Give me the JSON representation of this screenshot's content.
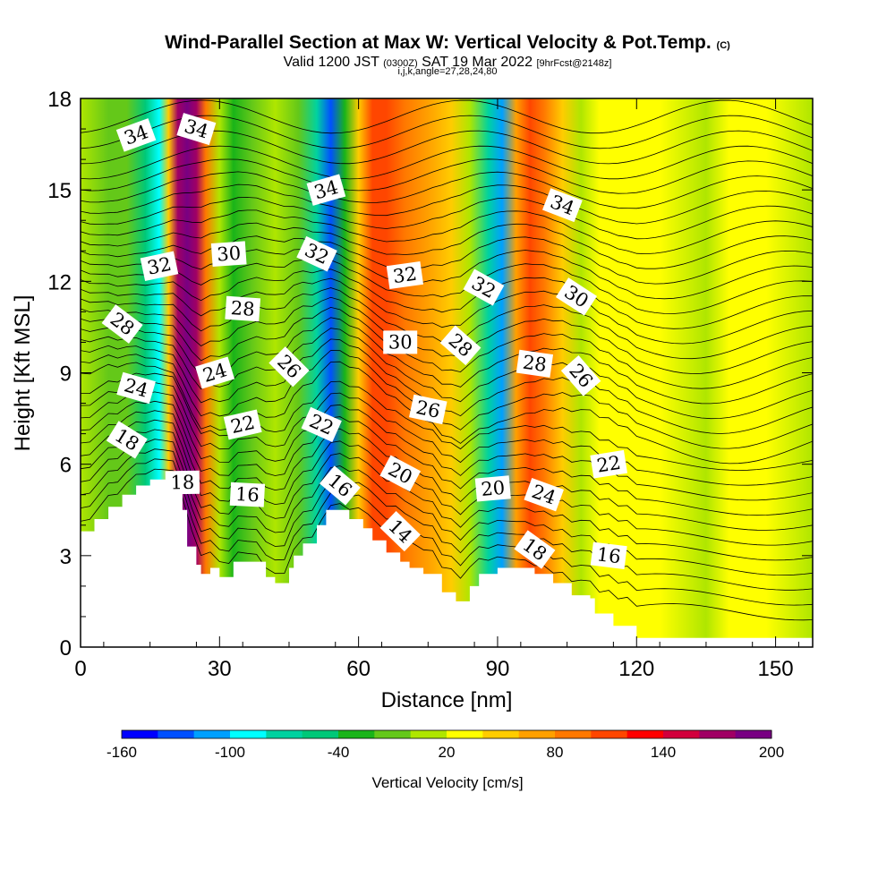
{
  "header": {
    "title_main": "Wind-Parallel Section at Max W: Vertical Velocity & Pot.Temp.",
    "title_mark": "(C)",
    "valid_prefix": "Valid 1200 JST",
    "valid_utc": "(0300Z)",
    "valid_date": "SAT 19 Mar 2022",
    "valid_fcst": "[9hrFcst@2148z]",
    "indices": "i,j,k,angle=27,28,24,80"
  },
  "chart_data": {
    "type": "heatmap",
    "xlabel": "Distance [nm]",
    "ylabel": "Height [Kft MSL]",
    "xlim": [
      0,
      158
    ],
    "ylim": [
      0,
      18
    ],
    "x_ticks": [
      0,
      30,
      60,
      90,
      120,
      150
    ],
    "y_ticks": [
      0,
      3,
      6,
      9,
      12,
      15,
      18
    ],
    "colorbar": {
      "label": "Vertical Velocity [cm/s]",
      "tick_values": [
        -160,
        -100,
        -40,
        20,
        80,
        140,
        200
      ],
      "colors": [
        "#0000ff",
        "#0050ff",
        "#00a0ff",
        "#00ffff",
        "#00d2a0",
        "#00c878",
        "#19b419",
        "#64c819",
        "#afe600",
        "#ffff00",
        "#ffcc00",
        "#ffa000",
        "#ff7800",
        "#ff4600",
        "#ff0000",
        "#d2003c",
        "#a00064",
        "#780082"
      ]
    },
    "vertical_velocity_columns": [
      {
        "x": 0,
        "w": -10
      },
      {
        "x": 6,
        "w": -40
      },
      {
        "x": 10,
        "w": -30
      },
      {
        "x": 14,
        "w": -80
      },
      {
        "x": 17,
        "w": -110
      },
      {
        "x": 19,
        "w": 20
      },
      {
        "x": 21,
        "w": 140
      },
      {
        "x": 23,
        "w": 180
      },
      {
        "x": 25,
        "w": 150
      },
      {
        "x": 27,
        "w": 60
      },
      {
        "x": 30,
        "w": -10
      },
      {
        "x": 33,
        "w": -60
      },
      {
        "x": 37,
        "w": -30
      },
      {
        "x": 42,
        "w": -10
      },
      {
        "x": 47,
        "w": -40
      },
      {
        "x": 51,
        "w": -90
      },
      {
        "x": 54,
        "w": -150
      },
      {
        "x": 57,
        "w": -60
      },
      {
        "x": 60,
        "w": 20
      },
      {
        "x": 63,
        "w": 80
      },
      {
        "x": 66,
        "w": 90
      },
      {
        "x": 70,
        "w": 60
      },
      {
        "x": 75,
        "w": 40
      },
      {
        "x": 80,
        "w": 20
      },
      {
        "x": 84,
        "w": -20
      },
      {
        "x": 88,
        "w": -100
      },
      {
        "x": 91,
        "w": -130
      },
      {
        "x": 94,
        "w": 40
      },
      {
        "x": 97,
        "w": 80
      },
      {
        "x": 100,
        "w": 70
      },
      {
        "x": 104,
        "w": 30
      },
      {
        "x": 108,
        "w": -20
      },
      {
        "x": 112,
        "w": 0
      },
      {
        "x": 118,
        "w": 10
      },
      {
        "x": 125,
        "w": 0
      },
      {
        "x": 135,
        "w": -10
      },
      {
        "x": 140,
        "w": 10
      },
      {
        "x": 148,
        "w": 0
      },
      {
        "x": 158,
        "w": -10
      }
    ],
    "potential_temperature_labels": [
      {
        "text": "34",
        "x": 12,
        "y": 16.8
      },
      {
        "text": "34",
        "x": 25,
        "y": 17.0
      },
      {
        "text": "34",
        "x": 53,
        "y": 15.0
      },
      {
        "text": "34",
        "x": 104,
        "y": 14.5
      },
      {
        "text": "32",
        "x": 17,
        "y": 12.5
      },
      {
        "text": "32",
        "x": 51,
        "y": 12.9
      },
      {
        "text": "32",
        "x": 70,
        "y": 12.2
      },
      {
        "text": "32",
        "x": 87,
        "y": 11.8
      },
      {
        "text": "30",
        "x": 32,
        "y": 12.9
      },
      {
        "text": "30",
        "x": 107,
        "y": 11.5
      },
      {
        "text": "30",
        "x": 69,
        "y": 10.0
      },
      {
        "text": "28",
        "x": 9,
        "y": 10.6
      },
      {
        "text": "28",
        "x": 35,
        "y": 11.1
      },
      {
        "text": "28",
        "x": 82,
        "y": 9.9
      },
      {
        "text": "28",
        "x": 98,
        "y": 9.3
      },
      {
        "text": "26",
        "x": 45,
        "y": 9.2
      },
      {
        "text": "26",
        "x": 75,
        "y": 7.8
      },
      {
        "text": "26",
        "x": 108,
        "y": 8.9
      },
      {
        "text": "24",
        "x": 12,
        "y": 8.5
      },
      {
        "text": "24",
        "x": 29,
        "y": 9.0
      },
      {
        "text": "24",
        "x": 100,
        "y": 5.0
      },
      {
        "text": "22",
        "x": 35,
        "y": 7.3
      },
      {
        "text": "22",
        "x": 52,
        "y": 7.3
      },
      {
        "text": "22",
        "x": 114,
        "y": 6.0
      },
      {
        "text": "20",
        "x": 69,
        "y": 5.7
      },
      {
        "text": "20",
        "x": 89,
        "y": 5.2
      },
      {
        "text": "18",
        "x": 10,
        "y": 6.8
      },
      {
        "text": "18",
        "x": 22,
        "y": 5.4
      },
      {
        "text": "18",
        "x": 98,
        "y": 3.2
      },
      {
        "text": "16",
        "x": 36,
        "y": 5.0
      },
      {
        "text": "16",
        "x": 56,
        "y": 5.3
      },
      {
        "text": "16",
        "x": 114,
        "y": 3.0
      },
      {
        "text": "14",
        "x": 69,
        "y": 3.8
      }
    ],
    "terrain": [
      [
        0,
        3.8
      ],
      [
        3,
        3.8
      ],
      [
        3,
        4.2
      ],
      [
        6,
        4.2
      ],
      [
        6,
        4.6
      ],
      [
        9,
        4.6
      ],
      [
        9,
        5.0
      ],
      [
        12,
        5.0
      ],
      [
        12,
        5.3
      ],
      [
        15,
        5.3
      ],
      [
        15,
        5.5
      ],
      [
        22,
        5.5
      ],
      [
        22,
        4.5
      ],
      [
        23,
        4.5
      ],
      [
        23,
        3.3
      ],
      [
        25,
        3.3
      ],
      [
        25,
        2.7
      ],
      [
        26,
        2.7
      ],
      [
        26,
        2.4
      ],
      [
        28,
        2.4
      ],
      [
        28,
        2.6
      ],
      [
        30,
        2.6
      ],
      [
        30,
        2.3
      ],
      [
        33,
        2.3
      ],
      [
        33,
        2.8
      ],
      [
        40,
        2.8
      ],
      [
        40,
        2.3
      ],
      [
        42,
        2.3
      ],
      [
        42,
        2.1
      ],
      [
        45,
        2.1
      ],
      [
        45,
        2.6
      ],
      [
        46,
        2.6
      ],
      [
        46,
        3.0
      ],
      [
        48,
        3.0
      ],
      [
        48,
        3.4
      ],
      [
        51,
        3.4
      ],
      [
        51,
        4.0
      ],
      [
        53,
        4.0
      ],
      [
        53,
        4.5
      ],
      [
        58,
        4.5
      ],
      [
        58,
        4.2
      ],
      [
        61,
        4.2
      ],
      [
        61,
        3.9
      ],
      [
        63,
        3.9
      ],
      [
        63,
        3.5
      ],
      [
        66,
        3.5
      ],
      [
        66,
        3.1
      ],
      [
        69,
        3.1
      ],
      [
        69,
        2.8
      ],
      [
        71,
        2.8
      ],
      [
        71,
        2.6
      ],
      [
        74,
        2.6
      ],
      [
        74,
        2.4
      ],
      [
        78,
        2.4
      ],
      [
        78,
        1.8
      ],
      [
        81,
        1.8
      ],
      [
        81,
        1.5
      ],
      [
        84,
        1.5
      ],
      [
        84,
        2.0
      ],
      [
        86,
        2.0
      ],
      [
        86,
        2.4
      ],
      [
        90,
        2.4
      ],
      [
        90,
        2.6
      ],
      [
        98,
        2.6
      ],
      [
        98,
        2.4
      ],
      [
        102,
        2.4
      ],
      [
        102,
        2.1
      ],
      [
        106,
        2.1
      ],
      [
        106,
        1.7
      ],
      [
        110,
        1.7
      ],
      [
        110,
        1.6
      ],
      [
        111,
        1.6
      ],
      [
        111,
        1.1
      ],
      [
        115,
        1.1
      ],
      [
        115,
        0.7
      ],
      [
        120,
        0.7
      ],
      [
        120,
        0.3
      ],
      [
        158,
        0.3
      ]
    ]
  }
}
